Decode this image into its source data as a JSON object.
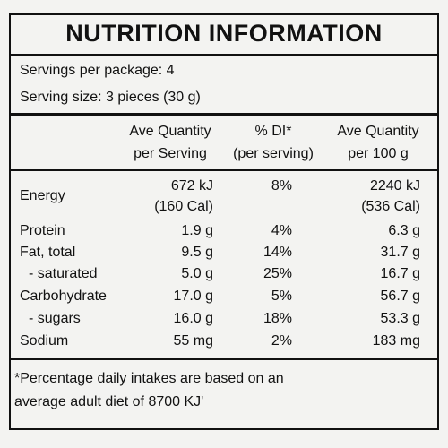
{
  "header": {
    "title": "NUTRITION INFORMATION"
  },
  "servings": {
    "per_package": "Servings per package: 4",
    "serving_size": "Serving size: 3 pieces (30 g)"
  },
  "table": {
    "columns": [
      [
        "Ave Quantity",
        "per Serving"
      ],
      [
        "% DI*",
        "(per serving)"
      ],
      [
        "Ave Quantity",
        "per 100 g"
      ]
    ],
    "rows": [
      [
        [
          "Energy"
        ],
        [
          "672 kJ",
          "(160 Cal)"
        ],
        [
          "8%"
        ],
        [
          "2240 kJ",
          "(536 Cal)"
        ]
      ],
      [
        [
          "Protein"
        ],
        [
          "1.9 g"
        ],
        [
          "4%"
        ],
        [
          "6.3 g"
        ]
      ],
      [
        [
          "Fat, total"
        ],
        [
          "9.5 g"
        ],
        [
          "14%"
        ],
        [
          "31.7 g"
        ]
      ],
      [
        [
          "- saturated"
        ],
        [
          "5.0 g"
        ],
        [
          "25%"
        ],
        [
          "16.7 g"
        ]
      ],
      [
        [
          "Carbohydrate"
        ],
        [
          "17.0 g"
        ],
        [
          "5%"
        ],
        [
          "56.7 g"
        ]
      ],
      [
        [
          "- sugars"
        ],
        [
          "16.0 g"
        ],
        [
          "18%"
        ],
        [
          "53.3 g"
        ]
      ],
      [
        [
          "Sodium"
        ],
        [
          "55 mg"
        ],
        [
          "2%"
        ],
        [
          "183 mg"
        ]
      ]
    ]
  },
  "footnote": [
    "*Percentage daily intakes are based on an",
    "average adult diet of 8700 KJ'"
  ]
}
